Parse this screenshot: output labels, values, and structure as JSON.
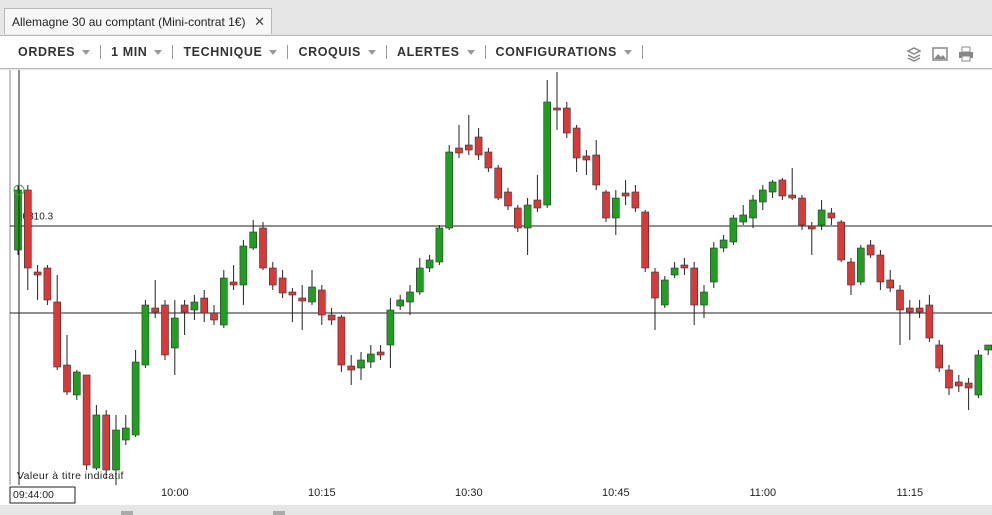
{
  "tab": {
    "title": "Allemagne 30 au comptant (Mini-contrat 1€)"
  },
  "toolbar": {
    "menus": [
      "ORDRES",
      "1 MIN",
      "TECHNIQUE",
      "CROQUIS",
      "ALERTES",
      "CONFIGURATIONS"
    ]
  },
  "chart_data": {
    "type": "candlestick",
    "categories": [
      null,
      null,
      null,
      null,
      null,
      null,
      null,
      null,
      null,
      null,
      null,
      null,
      null,
      null,
      null,
      null,
      "10:00",
      null,
      null,
      null,
      null,
      null,
      null,
      null,
      null,
      null,
      null,
      null,
      null,
      null,
      null,
      "10:15",
      null,
      null,
      null,
      null,
      null,
      null,
      null,
      null,
      null,
      null,
      null,
      null,
      null,
      null,
      "10:30",
      null,
      null,
      null,
      null,
      null,
      null,
      null,
      null,
      null,
      null,
      null,
      null,
      null,
      null,
      "10:45",
      null,
      null,
      null,
      null,
      null,
      null,
      null,
      null,
      null,
      null,
      null,
      null,
      null,
      null,
      "11:00",
      null,
      null,
      null,
      null,
      null,
      null,
      null,
      null,
      null,
      null,
      null,
      null,
      null,
      null,
      "11:15",
      null,
      null,
      null,
      null,
      null,
      null,
      null,
      null
    ],
    "open": [
      10807.9,
      10813.9,
      10805.7,
      10806.1,
      10802.7,
      10796.4,
      10793.4,
      10795.4,
      10786.1,
      10791.4,
      10785.9,
      10788.9,
      10789.4,
      10796.4,
      10802.1,
      10802.4,
      10798.1,
      10802.4,
      10801.9,
      10803.1,
      10801.6,
      10800.4,
      10804.7,
      10804.4,
      10808.1,
      10810.1,
      10806.1,
      10805.1,
      10803.7,
      10803.1,
      10802.7,
      10803.9,
      10801.4,
      10801.2,
      10796.3,
      10796.1,
      10796.7,
      10797.7,
      10798.4,
      10802.3,
      10802.7,
      10803.7,
      10806.1,
      10806.7,
      10810.1,
      10818.1,
      10818.4,
      10819.2,
      10817.7,
      10816.1,
      10813.7,
      10812.1,
      10810.1,
      10812.9,
      10812.4,
      10822.1,
      10822.1,
      10820.1,
      10817.3,
      10817.4,
      10813.7,
      10811.1,
      10813.6,
      10813.7,
      10811.7,
      10805.7,
      10802.4,
      10805.4,
      10806.4,
      10806.1,
      10802.4,
      10804.7,
      10808.1,
      10808.7,
      10810.7,
      10811.1,
      10812.7,
      10813.7,
      10814.9,
      10813.4,
      10813.1,
      10810.3,
      10810.4,
      10811.6,
      10810.7,
      10806.7,
      10804.7,
      10808.4,
      10807.4,
      10804.9,
      10803.9,
      10802.1,
      10802.1,
      10802.4,
      10798.4,
      10795.9,
      10794.7,
      10794.6,
      10793.4,
      10797.9
    ],
    "high": [
      10814.4,
      10814.4,
      10806.4,
      10806.4,
      10805.4,
      10799.4,
      10795.9,
      10795.4,
      10792.4,
      10791.9,
      10791.4,
      10791.4,
      10797.9,
      10802.9,
      10804.9,
      10802.9,
      10802.9,
      10802.9,
      10803.4,
      10803.9,
      10802.4,
      10805.9,
      10806.4,
      10808.9,
      10810.9,
      10810.7,
      10806.7,
      10805.9,
      10804.1,
      10804.4,
      10805.9,
      10804.4,
      10802.1,
      10801.4,
      10797.4,
      10797.7,
      10798.4,
      10798.4,
      10803.1,
      10803.4,
      10804.4,
      10807.1,
      10807.4,
      10810.4,
      10818.4,
      10820.4,
      10821.4,
      10820.1,
      10818.1,
      10816.4,
      10814.1,
      10812.4,
      10813.1,
      10815.4,
      10824.9,
      10825.7,
      10822.7,
      10820.4,
      10817.9,
      10818.9,
      10813.9,
      10813.9,
      10814.9,
      10814.4,
      10811.9,
      10806.1,
      10805.3,
      10806.7,
      10807.1,
      10806.7,
      10804.4,
      10808.7,
      10809.4,
      10811.4,
      10812.4,
      10813.4,
      10814.4,
      10814.9,
      10815.1,
      10816.1,
      10813.4,
      10810.7,
      10812.9,
      10812.1,
      10810.9,
      10807.1,
      10808.4,
      10808.9,
      10807.9,
      10805.9,
      10804.4,
      10802.9,
      10802.9,
      10803.4,
      10798.9,
      10796.4,
      10795.4,
      10795.1,
      10797.9,
      10798.4
    ],
    "low": [
      10807.4,
      10803.9,
      10802.9,
      10802.4,
      10795.9,
      10793.4,
      10792.9,
      10785.9,
      10785.9,
      10785.1,
      10784.4,
      10788.4,
      10789.2,
      10796.1,
      10801.1,
      10796.9,
      10795.4,
      10799.4,
      10800.9,
      10800.7,
      10800.4,
      10800.1,
      10803.9,
      10802.4,
      10807.9,
      10805.9,
      10803.9,
      10803.1,
      10800.7,
      10799.9,
      10802.4,
      10800.4,
      10800.4,
      10795.7,
      10794.4,
      10794.9,
      10796.1,
      10796.9,
      10796.1,
      10801.9,
      10801.4,
      10803.4,
      10805.7,
      10806.4,
      10809.9,
      10817.1,
      10817.4,
      10816.9,
      10815.7,
      10812.9,
      10811.9,
      10809.7,
      10807.4,
      10811.7,
      10812.1,
      10819.9,
      10819.1,
      10815.7,
      10815.4,
      10813.9,
      10810.7,
      10809.4,
      10812.4,
      10811.7,
      10805.7,
      10799.9,
      10802.1,
      10805.1,
      10805.4,
      10800.4,
      10801.1,
      10804.1,
      10807.7,
      10808.4,
      10810.4,
      10810.1,
      10811.9,
      10813.1,
      10812.9,
      10812.9,
      10809.9,
      10807.4,
      10809.9,
      10810.4,
      10806.7,
      10803.4,
      10804.4,
      10807.1,
      10803.9,
      10803.7,
      10798.4,
      10798.9,
      10801.1,
      10798.7,
      10795.7,
      10793.4,
      10793.7,
      10791.9,
      10793.1,
      10797.4
    ],
    "close": [
      10813.9,
      10806.1,
      10805.4,
      10802.9,
      10796.2,
      10793.7,
      10795.7,
      10786.4,
      10791.4,
      10785.9,
      10789.9,
      10790.1,
      10796.7,
      10802.4,
      10801.7,
      10797.4,
      10801.1,
      10801.7,
      10802.7,
      10801.6,
      10800.9,
      10805.1,
      10804.4,
      10808.3,
      10809.7,
      10806.1,
      10804.4,
      10803.6,
      10803.4,
      10802.8,
      10804.2,
      10801.4,
      10800.9,
      10796.4,
      10795.9,
      10796.9,
      10797.5,
      10797.4,
      10801.9,
      10802.9,
      10803.7,
      10806.1,
      10806.9,
      10810.1,
      10817.7,
      10817.6,
      10817.9,
      10817.4,
      10816.1,
      10813.1,
      10812.3,
      10810.1,
      10812.4,
      10812.1,
      10822.7,
      10821.9,
      10819.6,
      10817.1,
      10816.9,
      10814.4,
      10811.1,
      10813.1,
      10813.3,
      10812.1,
      10806.1,
      10803.1,
      10804.9,
      10806.1,
      10806.1,
      10802.4,
      10803.7,
      10808.1,
      10808.9,
      10811.1,
      10811.4,
      10812.9,
      10813.9,
      10814.7,
      10813.3,
      10813.1,
      10810.4,
      10810.0,
      10811.9,
      10811.1,
      10806.9,
      10804.4,
      10808.1,
      10807.4,
      10804.7,
      10804.1,
      10801.9,
      10801.7,
      10801.7,
      10799.1,
      10796.1,
      10794.1,
      10794.3,
      10794.1,
      10797.4,
      10798.4
    ],
    "up_color": "#1f9e1f",
    "down_color": "#d83a3a",
    "ylim": [
      10784.4,
      10825.9
    ],
    "levels": [
      10810.3,
      10801.6
    ],
    "annotation": "Valeur à titre indicatif",
    "cursor_time": "09:44:00"
  }
}
